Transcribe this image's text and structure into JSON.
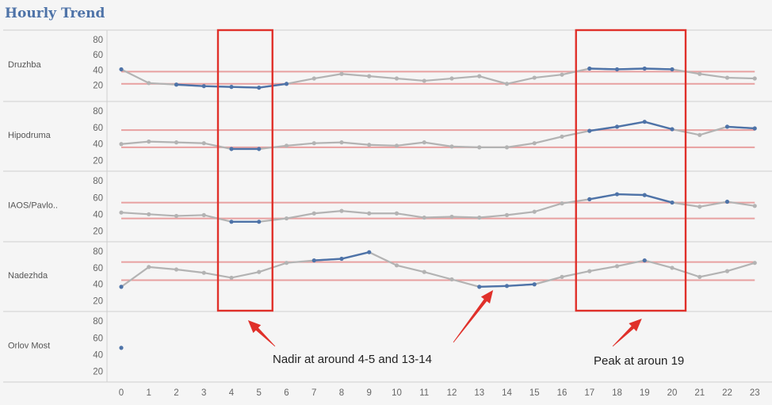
{
  "title": "Hourly Trend",
  "chart_data": {
    "type": "line",
    "x": [
      0,
      1,
      2,
      3,
      4,
      5,
      6,
      7,
      8,
      9,
      10,
      11,
      12,
      13,
      14,
      15,
      16,
      17,
      18,
      19,
      20,
      21,
      22,
      23
    ],
    "y_ticks": [
      20,
      40,
      60,
      80
    ],
    "colors": {
      "highlight": "#4e73a8",
      "normal": "#b3b3b3",
      "reference": "#e8a0a0",
      "box": "#e0302a",
      "arrow": "#e0302a"
    },
    "rows": [
      {
        "name": "Druzhba",
        "ylim": [
          0,
          84
        ],
        "ref_lines": [
          22,
          38
        ],
        "values": [
          41,
          23,
          21,
          19,
          18,
          17,
          22,
          29,
          35,
          32,
          29,
          26,
          29,
          32,
          22,
          30,
          34,
          42,
          41,
          42,
          41,
          35,
          30,
          29
        ],
        "highlight_segments": [
          [
            0,
            0
          ],
          [
            2,
            6
          ],
          [
            17,
            20
          ]
        ]
      },
      {
        "name": "Hipodruma",
        "ylim": [
          8,
          84
        ],
        "ref_lines": [
          36,
          57
        ],
        "values": [
          40,
          43,
          42,
          41,
          34,
          34,
          38,
          41,
          42,
          39,
          38,
          42,
          37,
          36,
          36,
          41,
          49,
          56,
          61,
          67,
          58,
          51,
          61,
          59
        ],
        "highlight_segments": [
          [
            4,
            5
          ],
          [
            17,
            20
          ],
          [
            22,
            23
          ]
        ]
      },
      {
        "name": "IAOS/Pavlo..",
        "ylim": [
          8,
          84
        ],
        "ref_lines": [
          35,
          54
        ],
        "values": [
          42,
          40,
          38,
          39,
          31,
          31,
          35,
          41,
          44,
          41,
          41,
          36,
          37,
          36,
          39,
          43,
          53,
          58,
          64,
          63,
          54,
          49,
          55,
          50
        ],
        "highlight_segments": [
          [
            4,
            5
          ],
          [
            17,
            20
          ],
          [
            22,
            22
          ]
        ]
      },
      {
        "name": "Nadezhda",
        "ylim": [
          8,
          84
        ],
        "ref_lines": [
          45,
          67
        ],
        "values": [
          37,
          61,
          58,
          54,
          48,
          55,
          66,
          69,
          71,
          79,
          63,
          55,
          46,
          37,
          38,
          40,
          49,
          56,
          62,
          69,
          60,
          49,
          56,
          66
        ],
        "highlight_segments": [
          [
            0,
            0
          ],
          [
            7,
            9
          ],
          [
            13,
            15
          ],
          [
            19,
            19
          ]
        ]
      },
      {
        "name": "Orlov Most",
        "ylim": [
          8,
          84
        ],
        "ref_lines": [],
        "values": [
          48,
          null,
          null,
          null,
          null,
          null,
          null,
          null,
          null,
          null,
          null,
          null,
          null,
          null,
          null,
          null,
          null,
          null,
          null,
          null,
          null,
          null,
          null,
          null
        ],
        "highlight_segments": [
          [
            0,
            0
          ]
        ]
      }
    ],
    "highlight_boxes": [
      [
        4,
        5
      ],
      [
        17,
        20
      ]
    ],
    "annotations": [
      {
        "text": "Nadir at around 4-5 and 13-14",
        "targets": [
          4.6,
          13.5
        ]
      },
      {
        "text": "Peak at aroun 19",
        "targets": [
          18.9
        ]
      }
    ]
  }
}
